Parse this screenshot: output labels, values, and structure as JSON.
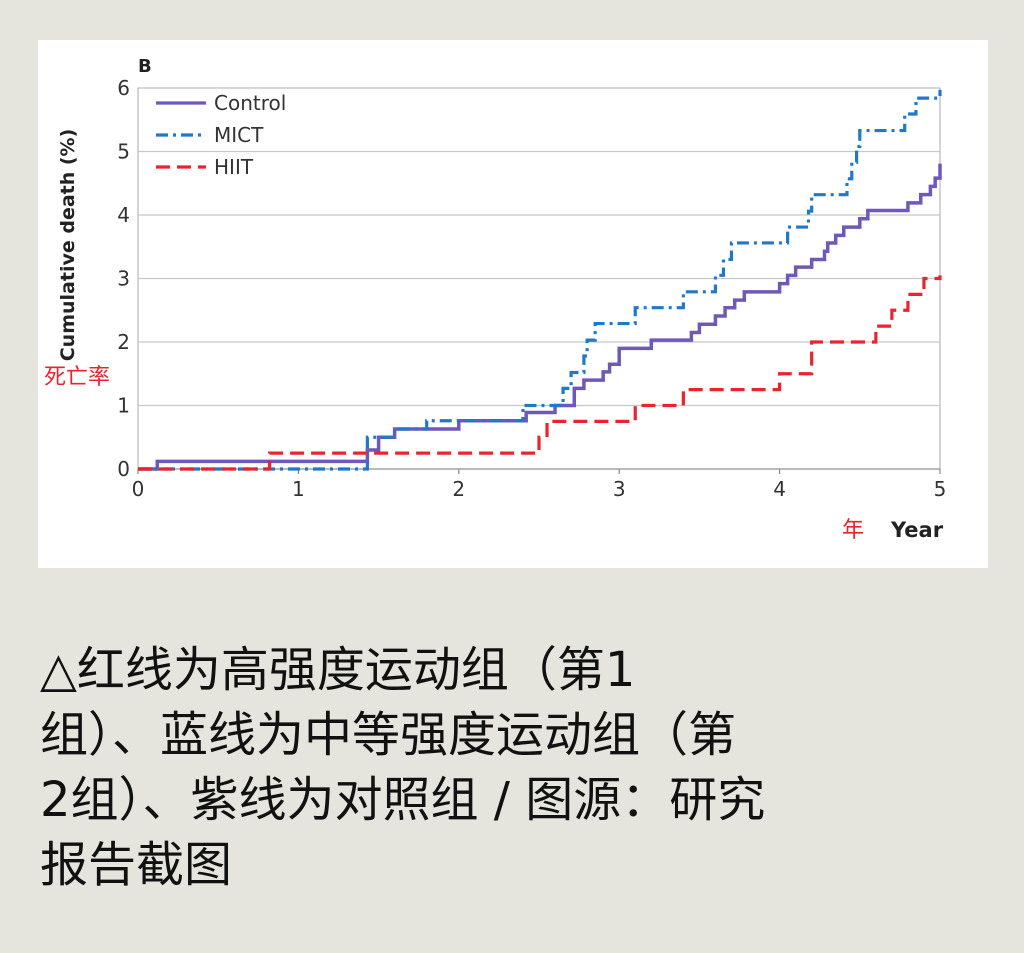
{
  "figure": {
    "panel_label": "B",
    "ylabel": "Cumulative death (%)",
    "ylabel_cn": "死亡率",
    "xlabel": "Year",
    "xlabel_cn": "年"
  },
  "chart_data": {
    "type": "line",
    "xlim": [
      0,
      5
    ],
    "ylim": [
      0,
      6
    ],
    "xticks": [
      "0",
      "1",
      "2",
      "3",
      "4",
      "5"
    ],
    "yticks": [
      "0",
      "1",
      "2",
      "3",
      "4",
      "5",
      "6"
    ],
    "grid": "horizontal",
    "legend_position": "top-left",
    "series": [
      {
        "name": "Control",
        "color": "#6f58b8",
        "style": "solid",
        "steps": [
          [
            0,
            0
          ],
          [
            0.12,
            0.12
          ],
          [
            1.43,
            0.12
          ],
          [
            1.43,
            0.3
          ],
          [
            1.5,
            0.5
          ],
          [
            1.6,
            0.63
          ],
          [
            2.0,
            0.63
          ],
          [
            2.0,
            0.76
          ],
          [
            2.42,
            0.76
          ],
          [
            2.42,
            0.89
          ],
          [
            2.6,
            1.0
          ],
          [
            2.72,
            1.0
          ],
          [
            2.72,
            1.27
          ],
          [
            2.78,
            1.4
          ],
          [
            2.9,
            1.53
          ],
          [
            2.94,
            1.65
          ],
          [
            3.0,
            1.9
          ],
          [
            3.2,
            2.03
          ],
          [
            3.45,
            2.15
          ],
          [
            3.5,
            2.28
          ],
          [
            3.6,
            2.41
          ],
          [
            3.66,
            2.54
          ],
          [
            3.72,
            2.66
          ],
          [
            3.78,
            2.79
          ],
          [
            4.0,
            2.79
          ],
          [
            4.0,
            2.92
          ],
          [
            4.05,
            3.05
          ],
          [
            4.1,
            3.18
          ],
          [
            4.2,
            3.18
          ],
          [
            4.2,
            3.3
          ],
          [
            4.28,
            3.43
          ],
          [
            4.3,
            3.56
          ],
          [
            4.35,
            3.68
          ],
          [
            4.4,
            3.81
          ],
          [
            4.5,
            3.94
          ],
          [
            4.55,
            4.07
          ],
          [
            4.8,
            4.07
          ],
          [
            4.8,
            4.19
          ],
          [
            4.88,
            4.32
          ],
          [
            4.94,
            4.45
          ],
          [
            4.97,
            4.58
          ],
          [
            5.0,
            4.81
          ]
        ]
      },
      {
        "name": "MICT",
        "color": "#1f78c8",
        "style": "dashdot",
        "steps": [
          [
            0,
            0
          ],
          [
            1.43,
            0
          ],
          [
            1.43,
            0.5
          ],
          [
            1.55,
            0.5
          ],
          [
            1.6,
            0.63
          ],
          [
            1.75,
            0.63
          ],
          [
            1.8,
            0.76
          ],
          [
            2.4,
            0.76
          ],
          [
            2.4,
            1.0
          ],
          [
            2.6,
            1.0
          ],
          [
            2.65,
            1.27
          ],
          [
            2.7,
            1.52
          ],
          [
            2.78,
            1.78
          ],
          [
            2.8,
            2.03
          ],
          [
            2.85,
            2.29
          ],
          [
            3.0,
            2.29
          ],
          [
            3.1,
            2.54
          ],
          [
            3.4,
            2.54
          ],
          [
            3.4,
            2.79
          ],
          [
            3.55,
            2.79
          ],
          [
            3.6,
            3.05
          ],
          [
            3.65,
            3.3
          ],
          [
            3.7,
            3.56
          ],
          [
            3.95,
            3.56
          ],
          [
            4.05,
            3.81
          ],
          [
            4.15,
            3.81
          ],
          [
            4.18,
            4.06
          ],
          [
            4.2,
            4.32
          ],
          [
            4.4,
            4.32
          ],
          [
            4.42,
            4.57
          ],
          [
            4.45,
            4.83
          ],
          [
            4.48,
            5.08
          ],
          [
            4.5,
            5.33
          ],
          [
            4.75,
            5.33
          ],
          [
            4.78,
            5.59
          ],
          [
            4.85,
            5.84
          ],
          [
            4.95,
            5.84
          ],
          [
            5.0,
            5.97
          ]
        ]
      },
      {
        "name": "HIIT",
        "color": "#e8242c",
        "style": "dashed",
        "steps": [
          [
            0,
            0
          ],
          [
            0.82,
            0
          ],
          [
            0.82,
            0.25
          ],
          [
            1.43,
            0.25
          ],
          [
            1.43,
            0.25
          ],
          [
            2.45,
            0.25
          ],
          [
            2.5,
            0.5
          ],
          [
            2.55,
            0.75
          ],
          [
            3.1,
            0.75
          ],
          [
            3.1,
            1.0
          ],
          [
            3.4,
            1.0
          ],
          [
            3.4,
            1.25
          ],
          [
            4.0,
            1.25
          ],
          [
            4.0,
            1.5
          ],
          [
            4.2,
            1.5
          ],
          [
            4.2,
            2.0
          ],
          [
            4.5,
            2.0
          ],
          [
            4.6,
            2.25
          ],
          [
            4.7,
            2.5
          ],
          [
            4.8,
            2.75
          ],
          [
            4.9,
            3.0
          ],
          [
            5.0,
            3.05
          ]
        ]
      }
    ]
  },
  "caption": "△红线为高强度运动组（第1\n组）、蓝线为中等强度运动组（第\n2组）、紫线为对照组 / 图源：研究\n报告截图"
}
